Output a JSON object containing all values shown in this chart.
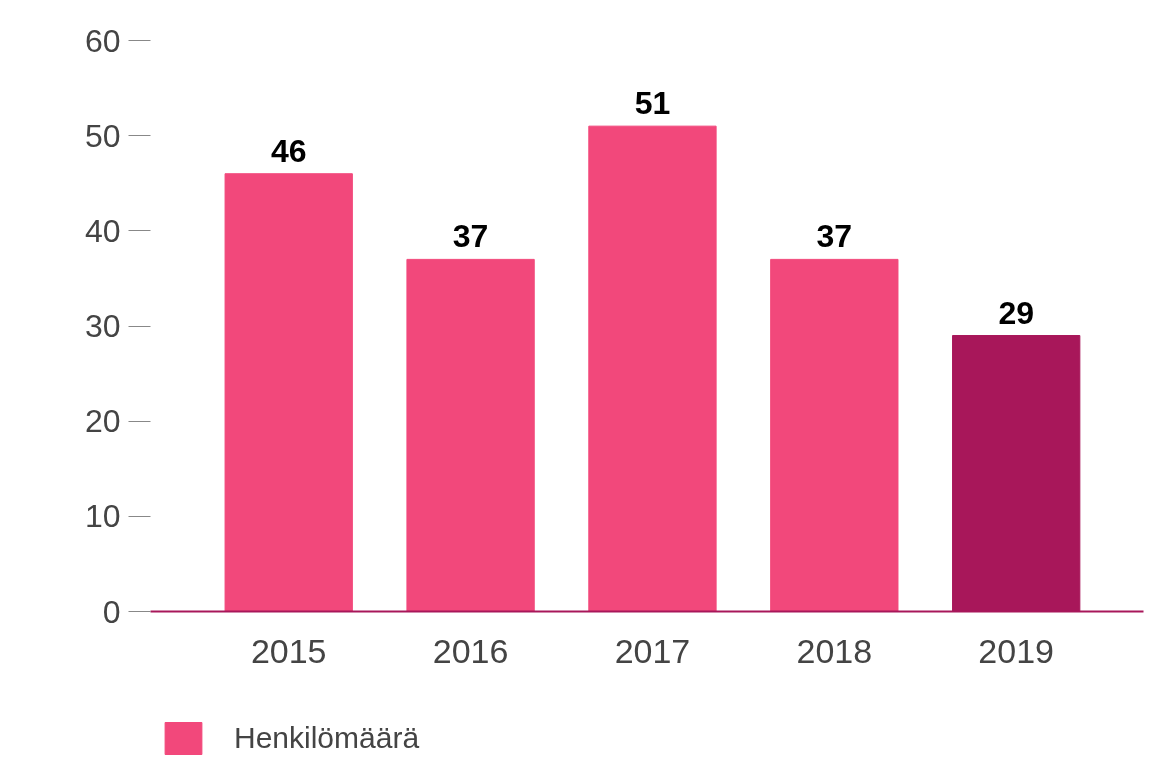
{
  "chart_data": {
    "type": "bar",
    "categories": [
      "2015",
      "2016",
      "2017",
      "2018",
      "2019"
    ],
    "series": [
      {
        "name": "Henkilömäärä",
        "color": "#f2487b",
        "colors": [
          "#f2487b",
          "#f2487b",
          "#f2487b",
          "#f2487b",
          "#a8175a"
        ],
        "values": [
          46,
          37,
          51,
          37,
          29
        ]
      }
    ],
    "ylim": [
      0,
      60
    ],
    "yticks": [
      0,
      10,
      20,
      30,
      40,
      50,
      60
    ],
    "data_labels": true,
    "grid": false,
    "legend": "bottom left"
  }
}
